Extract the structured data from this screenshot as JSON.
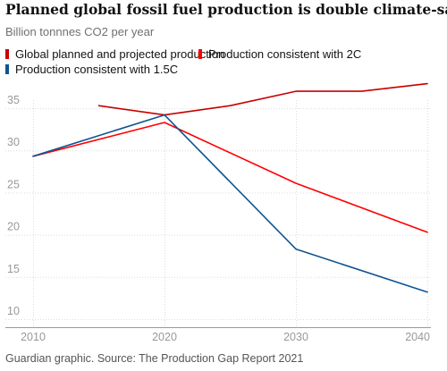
{
  "chart_data": {
    "type": "line",
    "title": "Planned global fossil fuel production is double climate-safe levels",
    "subtitle": "Billion tonnnes CO2 per year",
    "source": "Guardian graphic. Source: The Production Gap Report 2021",
    "xlabel": "",
    "ylabel": "",
    "xlim": [
      2010,
      2040
    ],
    "ylim": [
      10,
      38
    ],
    "x_ticks": [
      "2010",
      "2020",
      "2030",
      "2040"
    ],
    "x_tick_values": [
      2010,
      2020,
      2030,
      2040
    ],
    "y_ticks": [
      "10",
      "15",
      "20",
      "25",
      "30",
      "35"
    ],
    "y_tick_values": [
      10,
      15,
      20,
      25,
      30,
      35
    ],
    "grid": true,
    "legend_position": "top-left",
    "series": [
      {
        "name": "Global planned and projected production",
        "color": "#c70000",
        "x": [
          2015,
          2020,
          2025,
          2030,
          2035,
          2040
        ],
        "y": [
          35.3,
          34.2,
          35.3,
          37.0,
          37.0,
          37.9
        ]
      },
      {
        "name": "Production consistent with 2C",
        "color": "#ff0000",
        "x": [
          2010,
          2020,
          2030,
          2040
        ],
        "y": [
          29.3,
          33.3,
          26.1,
          20.3
        ]
      },
      {
        "name": "Production consistent with 1.5C",
        "color": "#0f5492",
        "x": [
          2010,
          2020,
          2030,
          2040
        ],
        "y": [
          29.3,
          34.2,
          18.3,
          13.2
        ]
      }
    ]
  }
}
